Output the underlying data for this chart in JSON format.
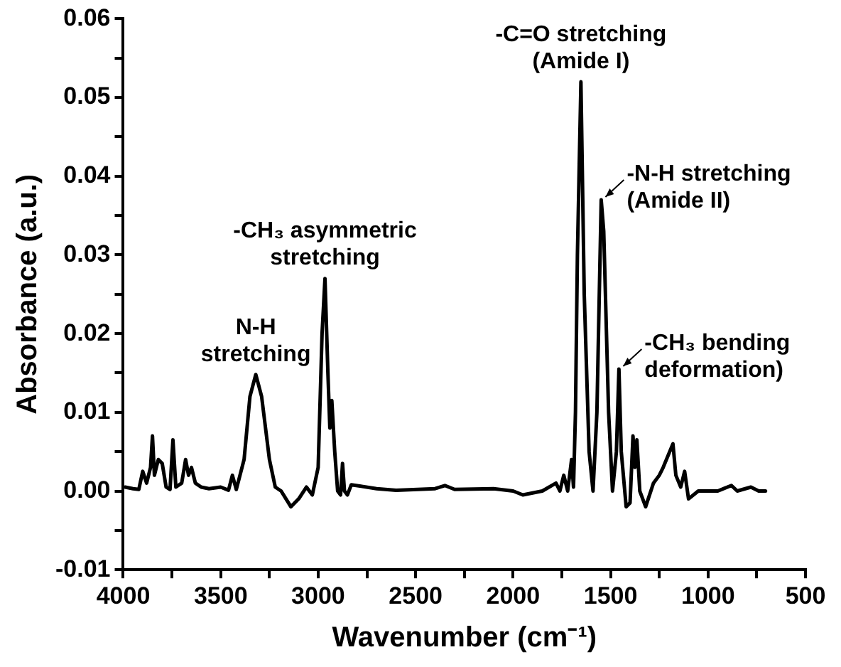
{
  "chart_data": {
    "type": "line",
    "xlabel": "Wavenumber (cm⁻¹)",
    "ylabel": "Absorbance (a.u.)",
    "x": [
      3990,
      3950,
      3920,
      3900,
      3880,
      3860,
      3850,
      3840,
      3820,
      3800,
      3780,
      3760,
      3745,
      3730,
      3700,
      3680,
      3665,
      3650,
      3630,
      3600,
      3560,
      3500,
      3460,
      3440,
      3420,
      3380,
      3350,
      3320,
      3290,
      3250,
      3220,
      3190,
      3140,
      3100,
      3060,
      3030,
      3000,
      2980,
      2965,
      2950,
      2940,
      2930,
      2915,
      2900,
      2885,
      2875,
      2865,
      2850,
      2830,
      2700,
      2600,
      2400,
      2350,
      2300,
      2100,
      2000,
      1950,
      1850,
      1780,
      1760,
      1740,
      1720,
      1700,
      1690,
      1680,
      1670,
      1652,
      1635,
      1610,
      1590,
      1570,
      1548,
      1535,
      1510,
      1490,
      1470,
      1457,
      1445,
      1420,
      1400,
      1385,
      1375,
      1365,
      1350,
      1320,
      1280,
      1250,
      1230,
      1180,
      1165,
      1140,
      1120,
      1100,
      1050,
      950,
      880,
      850,
      780,
      740,
      705
    ],
    "series": [
      {
        "color": "#000000",
        "values": [
          0.0005,
          0.0003,
          0.0002,
          0.0025,
          0.001,
          0.003,
          0.007,
          0.002,
          0.004,
          0.0035,
          0.0005,
          0.0002,
          0.0065,
          0.0005,
          0.001,
          0.004,
          0.002,
          0.003,
          0.001,
          0.0005,
          0.0003,
          0.0005,
          0.0001,
          0.002,
          0.0002,
          0.004,
          0.012,
          0.0148,
          0.012,
          0.004,
          0.0005,
          0.0,
          -0.002,
          -0.001,
          0.0005,
          -0.0005,
          0.003,
          0.02,
          0.027,
          0.015,
          0.008,
          0.0115,
          0.005,
          0.0,
          -0.0005,
          0.0035,
          0.0,
          -0.0005,
          0.0008,
          0.0003,
          0.0001,
          0.0003,
          0.0007,
          0.0002,
          0.0003,
          0.0,
          -0.0005,
          0.0,
          0.001,
          0.0,
          0.002,
          0.0,
          0.004,
          0.0005,
          0.01,
          0.03,
          0.052,
          0.025,
          0.005,
          0.0,
          0.01,
          0.037,
          0.033,
          0.01,
          0.0,
          0.005,
          0.0155,
          0.005,
          -0.002,
          -0.0015,
          0.007,
          0.003,
          0.0065,
          0.0,
          -0.002,
          0.001,
          0.002,
          0.003,
          0.006,
          0.002,
          0.0005,
          0.0025,
          -0.001,
          0.0,
          0.0,
          0.0007,
          0.0,
          0.0005,
          0.0,
          0.0
        ]
      }
    ],
    "xlim": [
      4000,
      500
    ],
    "xticks": [
      4000,
      {
        "value": 3750,
        "label": null
      },
      3500,
      {
        "value": 3250,
        "label": null
      },
      3000,
      {
        "value": 2750,
        "label": null
      },
      2500,
      {
        "value": 2250,
        "label": null
      },
      2000,
      {
        "value": 1750,
        "label": null
      },
      1500,
      {
        "value": 1250,
        "label": null
      },
      1000,
      {
        "value": 750,
        "label": null
      },
      500
    ],
    "ylim": [
      -0.01,
      0.06
    ],
    "yticks": [
      {
        "value": -0.01,
        "label": "-0.01"
      },
      {
        "value": -0.005,
        "label": null
      },
      {
        "value": 0,
        "label": "0.00"
      },
      {
        "value": 0.005,
        "label": null
      },
      {
        "value": 0.01,
        "label": "0.01"
      },
      {
        "value": 0.015,
        "label": null
      },
      {
        "value": 0.02,
        "label": "0.02"
      },
      {
        "value": 0.025,
        "label": null
      },
      {
        "value": 0.03,
        "label": "0.03"
      },
      {
        "value": 0.035,
        "label": null
      },
      {
        "value": 0.04,
        "label": "0.04"
      },
      {
        "value": 0.045,
        "label": null
      },
      {
        "value": 0.05,
        "label": "0.05"
      },
      {
        "value": 0.055,
        "label": null
      },
      {
        "value": 0.06,
        "label": "0.06"
      }
    ],
    "annotations": [
      {
        "text": "N-H\nstretching",
        "x": 3320,
        "y": 0.0148
      },
      {
        "text": "-CH₃ asymmetric\nstretching",
        "x": 2965,
        "y": 0.027
      },
      {
        "text": "-C=O stretching\n(Amide I)",
        "x": 1652,
        "y": 0.052
      },
      {
        "text": "-N-H stretching\n(Amide II)",
        "x": 1548,
        "y": 0.037
      },
      {
        "text": "-CH₃ bending\ndeformation)",
        "x": 1457,
        "y": 0.0155
      }
    ],
    "grid": false,
    "legend": false,
    "marker": "none",
    "line_style": "solid"
  }
}
